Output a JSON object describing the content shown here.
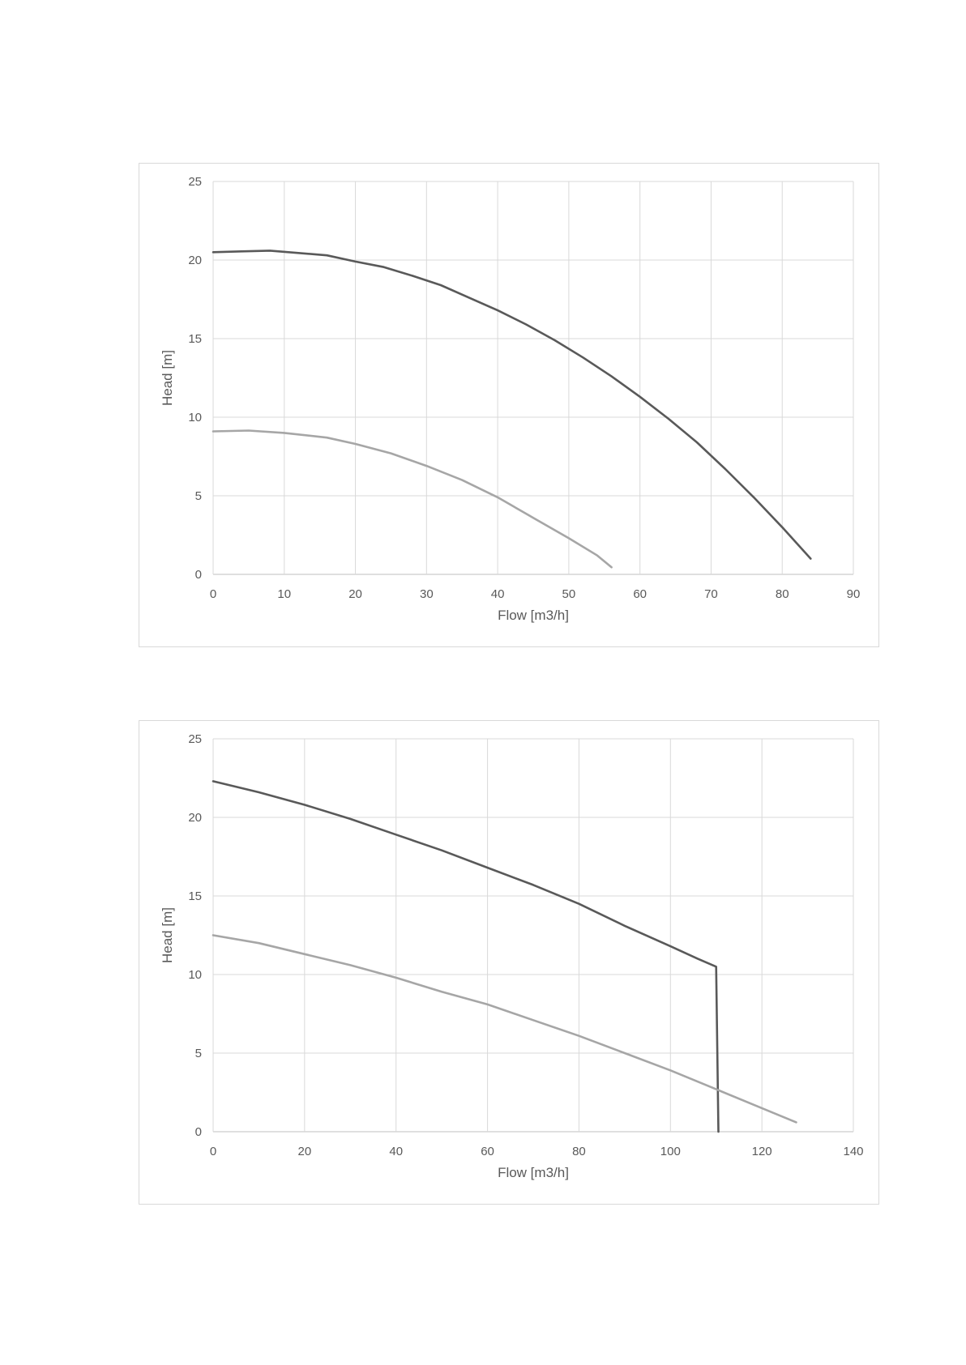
{
  "chart_data": [
    {
      "type": "line",
      "title": "",
      "xlabel": "Flow [m3/h]",
      "ylabel": "Head [m]",
      "xlim": [
        0,
        90
      ],
      "ylim": [
        0,
        25
      ],
      "xticks": [
        0,
        10,
        20,
        30,
        40,
        50,
        60,
        70,
        80,
        90
      ],
      "yticks": [
        0,
        5,
        10,
        15,
        20,
        25
      ],
      "grid": true,
      "legend": "none",
      "series": [
        {
          "color": "#595959",
          "points": [
            [
              0,
              20.5
            ],
            [
              4,
              20.55
            ],
            [
              8,
              20.6
            ],
            [
              12,
              20.45
            ],
            [
              16,
              20.3
            ],
            [
              20,
              19.9
            ],
            [
              24,
              19.55
            ],
            [
              28,
              19.0
            ],
            [
              32,
              18.4
            ],
            [
              36,
              17.6
            ],
            [
              40,
              16.8
            ],
            [
              44,
              15.9
            ],
            [
              48,
              14.9
            ],
            [
              52,
              13.8
            ],
            [
              56,
              12.6
            ],
            [
              60,
              11.3
            ],
            [
              64,
              9.9
            ],
            [
              68,
              8.4
            ],
            [
              72,
              6.7
            ],
            [
              76,
              4.9
            ],
            [
              80,
              3.0
            ],
            [
              84,
              1.0
            ]
          ]
        },
        {
          "color": "#a6a6a6",
          "points": [
            [
              0,
              9.1
            ],
            [
              5,
              9.15
            ],
            [
              10,
              9.0
            ],
            [
              16,
              8.7
            ],
            [
              20,
              8.3
            ],
            [
              25,
              7.7
            ],
            [
              30,
              6.9
            ],
            [
              35,
              6.0
            ],
            [
              40,
              4.9
            ],
            [
              45,
              3.6
            ],
            [
              50,
              2.3
            ],
            [
              54,
              1.2
            ],
            [
              56,
              0.45
            ]
          ]
        }
      ]
    },
    {
      "type": "line",
      "title": "",
      "xlabel": "Flow [m3/h]",
      "ylabel": "Head [m]",
      "xlim": [
        0,
        140
      ],
      "ylim": [
        0,
        25
      ],
      "xticks": [
        0,
        20,
        40,
        60,
        80,
        100,
        120,
        140
      ],
      "yticks": [
        0,
        5,
        10,
        15,
        20,
        25
      ],
      "grid": true,
      "legend": "none",
      "series": [
        {
          "color": "#595959",
          "points": [
            [
              0,
              22.3
            ],
            [
              10,
              21.6
            ],
            [
              20,
              20.8
            ],
            [
              30,
              19.9
            ],
            [
              40,
              18.9
            ],
            [
              50,
              17.9
            ],
            [
              60,
              16.8
            ],
            [
              70,
              15.7
            ],
            [
              80,
              14.5
            ],
            [
              90,
              13.1
            ],
            [
              100,
              11.8
            ],
            [
              106,
              11.0
            ],
            [
              110,
              10.5
            ],
            [
              110.5,
              0
            ]
          ]
        },
        {
          "color": "#a6a6a6",
          "points": [
            [
              0,
              12.5
            ],
            [
              10,
              12.0
            ],
            [
              20,
              11.3
            ],
            [
              30,
              10.6
            ],
            [
              40,
              9.8
            ],
            [
              50,
              8.9
            ],
            [
              60,
              8.1
            ],
            [
              70,
              7.1
            ],
            [
              80,
              6.1
            ],
            [
              90,
              5.0
            ],
            [
              100,
              3.9
            ],
            [
              110,
              2.7
            ],
            [
              120,
              1.5
            ],
            [
              127.5,
              0.6
            ]
          ]
        }
      ]
    }
  ]
}
